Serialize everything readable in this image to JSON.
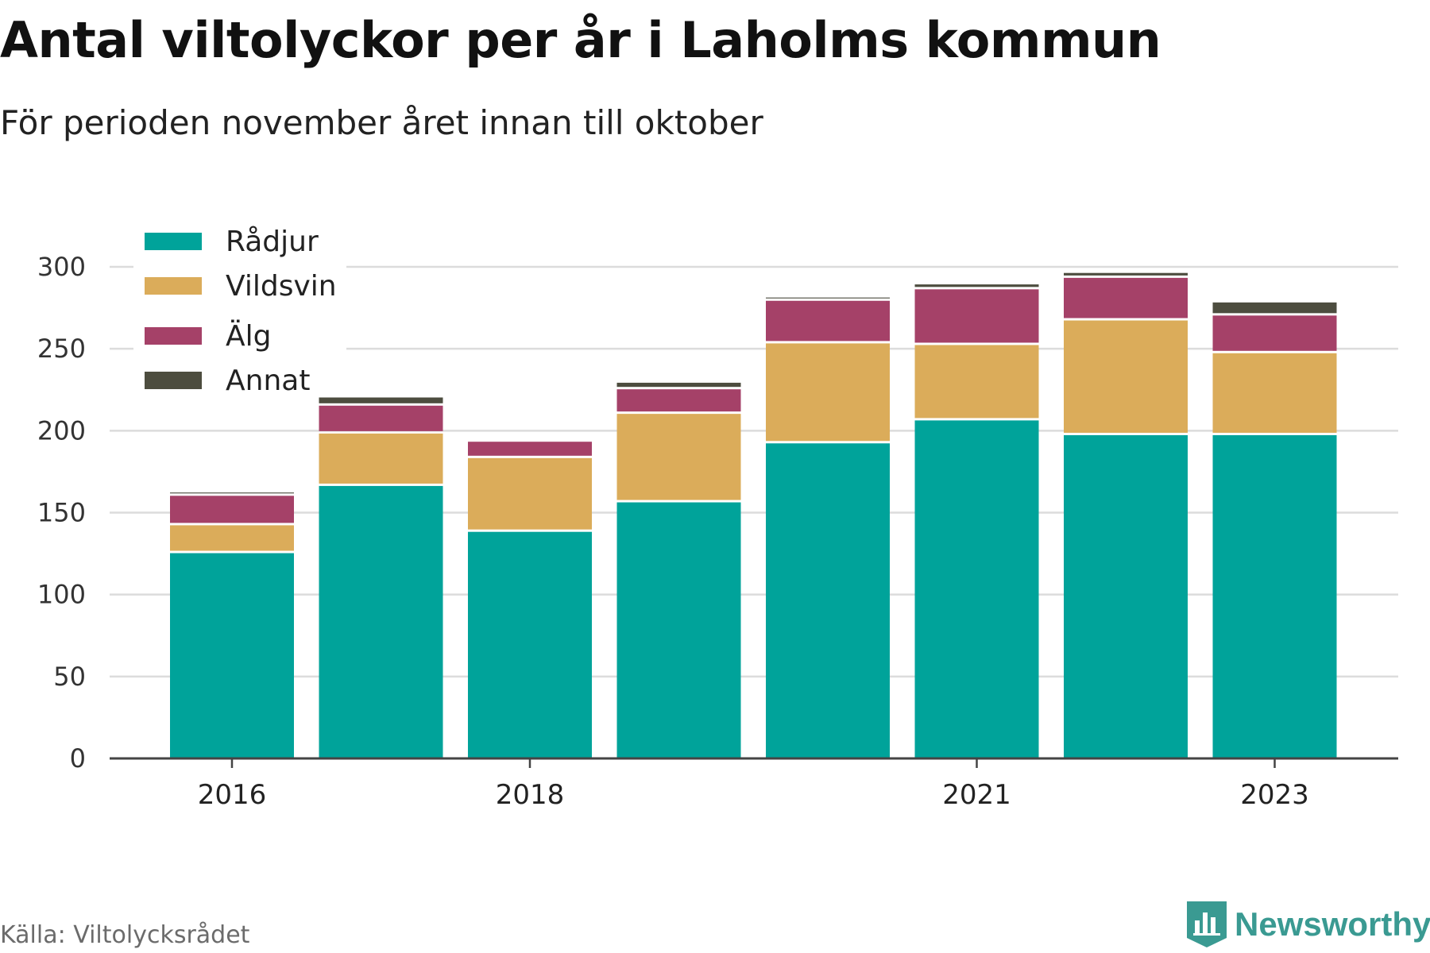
{
  "title": "Antal viltolyckor per år i Laholms kommun",
  "subtitle": "För perioden november året innan till oktober",
  "source": "Källa: Viltolycksrådet",
  "brand": "Newsworthy",
  "colors": {
    "Rådjur": "#00a39a",
    "Vildsvin": "#dbac5a",
    "Älg": "#a54168",
    "Annat": "#4d4d3f",
    "grid": "#dcdcdc",
    "axis": "#444444",
    "brand": "#3a9a92"
  },
  "chart_data": {
    "type": "bar",
    "stacked": true,
    "categories": [
      "2016",
      "2017",
      "2018",
      "2019",
      "2020",
      "2021",
      "2022",
      "2023"
    ],
    "x_tick_labels": [
      "2016",
      "",
      "2018",
      "",
      "",
      "2021",
      "",
      "2023"
    ],
    "series": [
      {
        "name": "Rådjur",
        "values": [
          126,
          167,
          139,
          157,
          193,
          207,
          198,
          198
        ]
      },
      {
        "name": "Vildsvin",
        "values": [
          17,
          32,
          45,
          54,
          61,
          46,
          70,
          50
        ]
      },
      {
        "name": "Älg",
        "values": [
          18,
          17,
          10,
          15,
          26,
          34,
          26,
          23
        ]
      },
      {
        "name": "Annat",
        "values": [
          2,
          5,
          0,
          4,
          2,
          3,
          3,
          8
        ]
      }
    ],
    "ylim": [
      0,
      300
    ],
    "yticks": [
      0,
      50,
      100,
      150,
      200,
      250,
      300
    ],
    "grid": true,
    "legend": "top-left",
    "xlabel": "",
    "ylabel": ""
  }
}
